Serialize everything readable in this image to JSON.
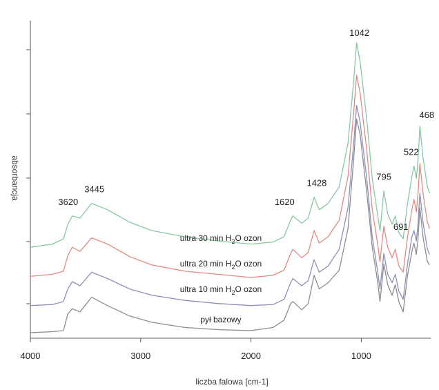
{
  "chart_data": {
    "type": "line",
    "xlabel": "liczba falowa [cm-1]",
    "ylabel": "absorbancja",
    "xlim": [
      4000,
      370
    ],
    "x_reversed": true,
    "x_ticks": [
      4000,
      3000,
      2000,
      1000
    ],
    "x_tick_labels": [
      "4000",
      "3000",
      "2000",
      "1000"
    ],
    "grid": false,
    "peak_labels": [
      {
        "text": "3620",
        "x": 3620
      },
      {
        "text": "3445",
        "x": 3445
      },
      {
        "text": "1620",
        "x": 1620
      },
      {
        "text": "1428",
        "x": 1428
      },
      {
        "text": "1042",
        "x": 1042
      },
      {
        "text": "795",
        "x": 795
      },
      {
        "text": "691",
        "x": 691
      },
      {
        "text": "522",
        "x": 522
      },
      {
        "text": "468",
        "x": 468
      }
    ],
    "series": [
      {
        "label_parts": [
          "pył bazowy",
          "",
          ""
        ],
        "color": "#8c8c8c",
        "points": [
          [
            4000,
            0.0
          ],
          [
            3800,
            0.01
          ],
          [
            3700,
            0.02
          ],
          [
            3660,
            0.18
          ],
          [
            3620,
            0.23
          ],
          [
            3550,
            0.2
          ],
          [
            3445,
            0.34
          ],
          [
            3300,
            0.26
          ],
          [
            3100,
            0.16
          ],
          [
            2900,
            0.1
          ],
          [
            2600,
            0.05
          ],
          [
            2300,
            0.03
          ],
          [
            2000,
            0.02
          ],
          [
            1800,
            0.05
          ],
          [
            1700,
            0.12
          ],
          [
            1640,
            0.28
          ],
          [
            1620,
            0.3
          ],
          [
            1540,
            0.22
          ],
          [
            1480,
            0.28
          ],
          [
            1428,
            0.55
          ],
          [
            1380,
            0.42
          ],
          [
            1300,
            0.48
          ],
          [
            1200,
            0.6
          ],
          [
            1120,
            1.0
          ],
          [
            1070,
            1.65
          ],
          [
            1042,
            2.05
          ],
          [
            1010,
            1.9
          ],
          [
            950,
            1.35
          ],
          [
            900,
            0.82
          ],
          [
            850,
            0.48
          ],
          [
            830,
            0.3
          ],
          [
            820,
            0.4
          ],
          [
            795,
            0.66
          ],
          [
            760,
            0.46
          ],
          [
            720,
            0.36
          ],
          [
            691,
            0.46
          ],
          [
            660,
            0.3
          ],
          [
            620,
            0.2
          ],
          [
            580,
            0.55
          ],
          [
            540,
            0.78
          ],
          [
            522,
            0.86
          ],
          [
            500,
            0.75
          ],
          [
            485,
            0.9
          ],
          [
            468,
            1.2
          ],
          [
            440,
            0.92
          ],
          [
            400,
            0.68
          ],
          [
            380,
            0.65
          ]
        ]
      },
      {
        "label_parts": [
          "ultra 10 min H",
          "2",
          "O ozon"
        ],
        "color": "#8a90b8",
        "points": [
          [
            4000,
            0.26
          ],
          [
            3800,
            0.27
          ],
          [
            3700,
            0.3
          ],
          [
            3660,
            0.42
          ],
          [
            3620,
            0.49
          ],
          [
            3550,
            0.45
          ],
          [
            3445,
            0.58
          ],
          [
            3300,
            0.52
          ],
          [
            3100,
            0.42
          ],
          [
            2900,
            0.36
          ],
          [
            2600,
            0.31
          ],
          [
            2300,
            0.28
          ],
          [
            2000,
            0.26
          ],
          [
            1800,
            0.27
          ],
          [
            1700,
            0.32
          ],
          [
            1640,
            0.48
          ],
          [
            1620,
            0.52
          ],
          [
            1540,
            0.45
          ],
          [
            1480,
            0.5
          ],
          [
            1428,
            0.7
          ],
          [
            1380,
            0.58
          ],
          [
            1300,
            0.64
          ],
          [
            1200,
            0.8
          ],
          [
            1120,
            1.2
          ],
          [
            1070,
            1.8
          ],
          [
            1042,
            2.18
          ],
          [
            1010,
            2.02
          ],
          [
            950,
            1.48
          ],
          [
            900,
            0.92
          ],
          [
            850,
            0.58
          ],
          [
            830,
            0.42
          ],
          [
            820,
            0.52
          ],
          [
            795,
            0.76
          ],
          [
            760,
            0.56
          ],
          [
            720,
            0.48
          ],
          [
            691,
            0.56
          ],
          [
            660,
            0.4
          ],
          [
            620,
            0.32
          ],
          [
            580,
            0.66
          ],
          [
            540,
            0.92
          ],
          [
            522,
            0.98
          ],
          [
            500,
            0.88
          ],
          [
            485,
            1.04
          ],
          [
            468,
            1.34
          ],
          [
            440,
            1.06
          ],
          [
            400,
            0.8
          ],
          [
            380,
            0.75
          ]
        ]
      },
      {
        "label_parts": [
          "ultra 20 min H",
          "2",
          "O ozon"
        ],
        "color": "#e08a82",
        "points": [
          [
            4000,
            0.54
          ],
          [
            3800,
            0.56
          ],
          [
            3700,
            0.59
          ],
          [
            3660,
            0.74
          ],
          [
            3620,
            0.82
          ],
          [
            3550,
            0.78
          ],
          [
            3445,
            0.91
          ],
          [
            3300,
            0.85
          ],
          [
            3100,
            0.73
          ],
          [
            2900,
            0.65
          ],
          [
            2600,
            0.59
          ],
          [
            2300,
            0.56
          ],
          [
            2000,
            0.53
          ],
          [
            1800,
            0.55
          ],
          [
            1700,
            0.6
          ],
          [
            1640,
            0.76
          ],
          [
            1620,
            0.8
          ],
          [
            1540,
            0.72
          ],
          [
            1480,
            0.77
          ],
          [
            1428,
            0.98
          ],
          [
            1380,
            0.86
          ],
          [
            1300,
            0.92
          ],
          [
            1200,
            1.08
          ],
          [
            1120,
            1.5
          ],
          [
            1070,
            2.1
          ],
          [
            1042,
            2.47
          ],
          [
            1010,
            2.3
          ],
          [
            950,
            1.75
          ],
          [
            900,
            1.18
          ],
          [
            850,
            0.84
          ],
          [
            830,
            0.68
          ],
          [
            820,
            0.78
          ],
          [
            795,
            1.02
          ],
          [
            760,
            0.82
          ],
          [
            720,
            0.72
          ],
          [
            691,
            0.8
          ],
          [
            660,
            0.64
          ],
          [
            620,
            0.58
          ],
          [
            580,
            0.92
          ],
          [
            540,
            1.18
          ],
          [
            522,
            1.28
          ],
          [
            500,
            1.16
          ],
          [
            485,
            1.34
          ],
          [
            468,
            1.62
          ],
          [
            440,
            1.34
          ],
          [
            400,
            1.06
          ],
          [
            380,
            1.0
          ]
        ]
      },
      {
        "label_parts": [
          "ultra 30 min H",
          "2",
          "O ozon"
        ],
        "color": "#88c8a0",
        "points": [
          [
            4000,
            0.82
          ],
          [
            3800,
            0.85
          ],
          [
            3700,
            0.9
          ],
          [
            3660,
            1.04
          ],
          [
            3620,
            1.12
          ],
          [
            3550,
            1.1
          ],
          [
            3445,
            1.24
          ],
          [
            3300,
            1.18
          ],
          [
            3100,
            1.06
          ],
          [
            2900,
            0.98
          ],
          [
            2600,
            0.92
          ],
          [
            2300,
            0.88
          ],
          [
            2000,
            0.85
          ],
          [
            1800,
            0.87
          ],
          [
            1700,
            0.92
          ],
          [
            1640,
            1.08
          ],
          [
            1620,
            1.12
          ],
          [
            1540,
            1.05
          ],
          [
            1480,
            1.1
          ],
          [
            1428,
            1.3
          ],
          [
            1380,
            1.18
          ],
          [
            1300,
            1.24
          ],
          [
            1200,
            1.4
          ],
          [
            1120,
            1.82
          ],
          [
            1070,
            2.4
          ],
          [
            1042,
            2.78
          ],
          [
            1010,
            2.6
          ],
          [
            950,
            2.05
          ],
          [
            900,
            1.48
          ],
          [
            850,
            1.12
          ],
          [
            830,
            0.98
          ],
          [
            820,
            1.08
          ],
          [
            795,
            1.36
          ],
          [
            760,
            1.14
          ],
          [
            720,
            1.04
          ],
          [
            691,
            1.12
          ],
          [
            660,
            0.96
          ],
          [
            620,
            0.9
          ],
          [
            580,
            1.24
          ],
          [
            540,
            1.5
          ],
          [
            522,
            1.6
          ],
          [
            500,
            1.48
          ],
          [
            485,
            1.66
          ],
          [
            468,
            1.98
          ],
          [
            440,
            1.68
          ],
          [
            400,
            1.4
          ],
          [
            380,
            1.34
          ]
        ]
      }
    ],
    "ylim": [
      0,
      2.9
    ]
  }
}
